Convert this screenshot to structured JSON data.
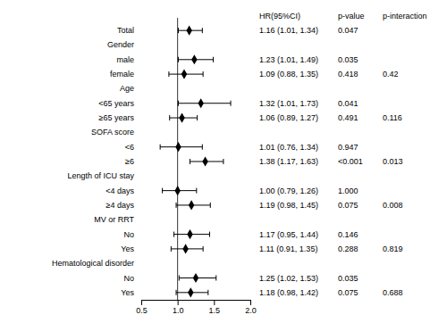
{
  "chart_data": {
    "type": "forest",
    "categories": [
      "Total",
      "Gender",
      "male",
      "female",
      "Age",
      "<65 years",
      "≥65 years",
      "SOFA score",
      "<6",
      "≥6",
      "Length of ICU stay",
      "<4 days",
      "≥4 days",
      "MV or RRT",
      "No",
      "Yes",
      "Hematological disorder",
      "No",
      "Yes"
    ],
    "values": [
      1.16,
      null,
      1.23,
      1.09,
      null,
      1.32,
      1.06,
      null,
      1.01,
      1.38,
      null,
      1.0,
      1.19,
      null,
      1.17,
      1.11,
      null,
      1.25,
      1.18
    ],
    "lo": [
      1.01,
      null,
      1.01,
      0.88,
      null,
      1.01,
      0.89,
      null,
      0.76,
      1.17,
      null,
      0.79,
      0.98,
      null,
      0.95,
      0.91,
      null,
      1.02,
      0.98
    ],
    "hi": [
      1.34,
      null,
      1.49,
      1.35,
      null,
      1.73,
      1.27,
      null,
      1.34,
      1.63,
      null,
      1.26,
      1.45,
      null,
      1.44,
      1.35,
      null,
      1.53,
      1.42
    ],
    "value_labels": [
      "1.16 (1.01, 1.34)",
      null,
      "1.23 (1.01, 1.49)",
      "1.09 (0.88, 1.35)",
      null,
      "1.32 (1.01, 1.73)",
      "1.06 (0.89, 1.27)",
      null,
      "1.01 (0.76, 1.34)",
      "1.38 (1.17, 1.63)",
      null,
      "1.00 (0.79, 1.26)",
      "1.19 (0.98, 1.45)",
      null,
      "1.17 (0.95, 1.44)",
      "1.11 (0.91, 1.35)",
      null,
      "1.25 (1.02, 1.53)",
      "1.18 (0.98, 1.42)"
    ],
    "pval": [
      "0.047",
      null,
      "0.035",
      "0.418",
      null,
      "0.041",
      "0.491",
      null,
      "0.947",
      "<0.001",
      null,
      "1.000",
      "0.075",
      null,
      "0.146",
      "0.288",
      null,
      "0.035",
      "0.075"
    ],
    "pint": [
      null,
      null,
      null,
      "0.42",
      null,
      null,
      "0.116",
      null,
      null,
      "0.013",
      null,
      null,
      "0.008",
      null,
      null,
      "0.819",
      null,
      null,
      "0.688"
    ],
    "headers": {
      "hr_ci": "HR(95%CI)",
      "pval": "p-value",
      "pint": "p-interaction"
    },
    "reference_line": 1,
    "xlim": [
      0.5,
      2.0
    ],
    "xticks": [
      0.5,
      {
        "value": 1,
        "label": "1.0"
      },
      1.5,
      {
        "value": 2,
        "label": "2.0"
      }
    ]
  }
}
